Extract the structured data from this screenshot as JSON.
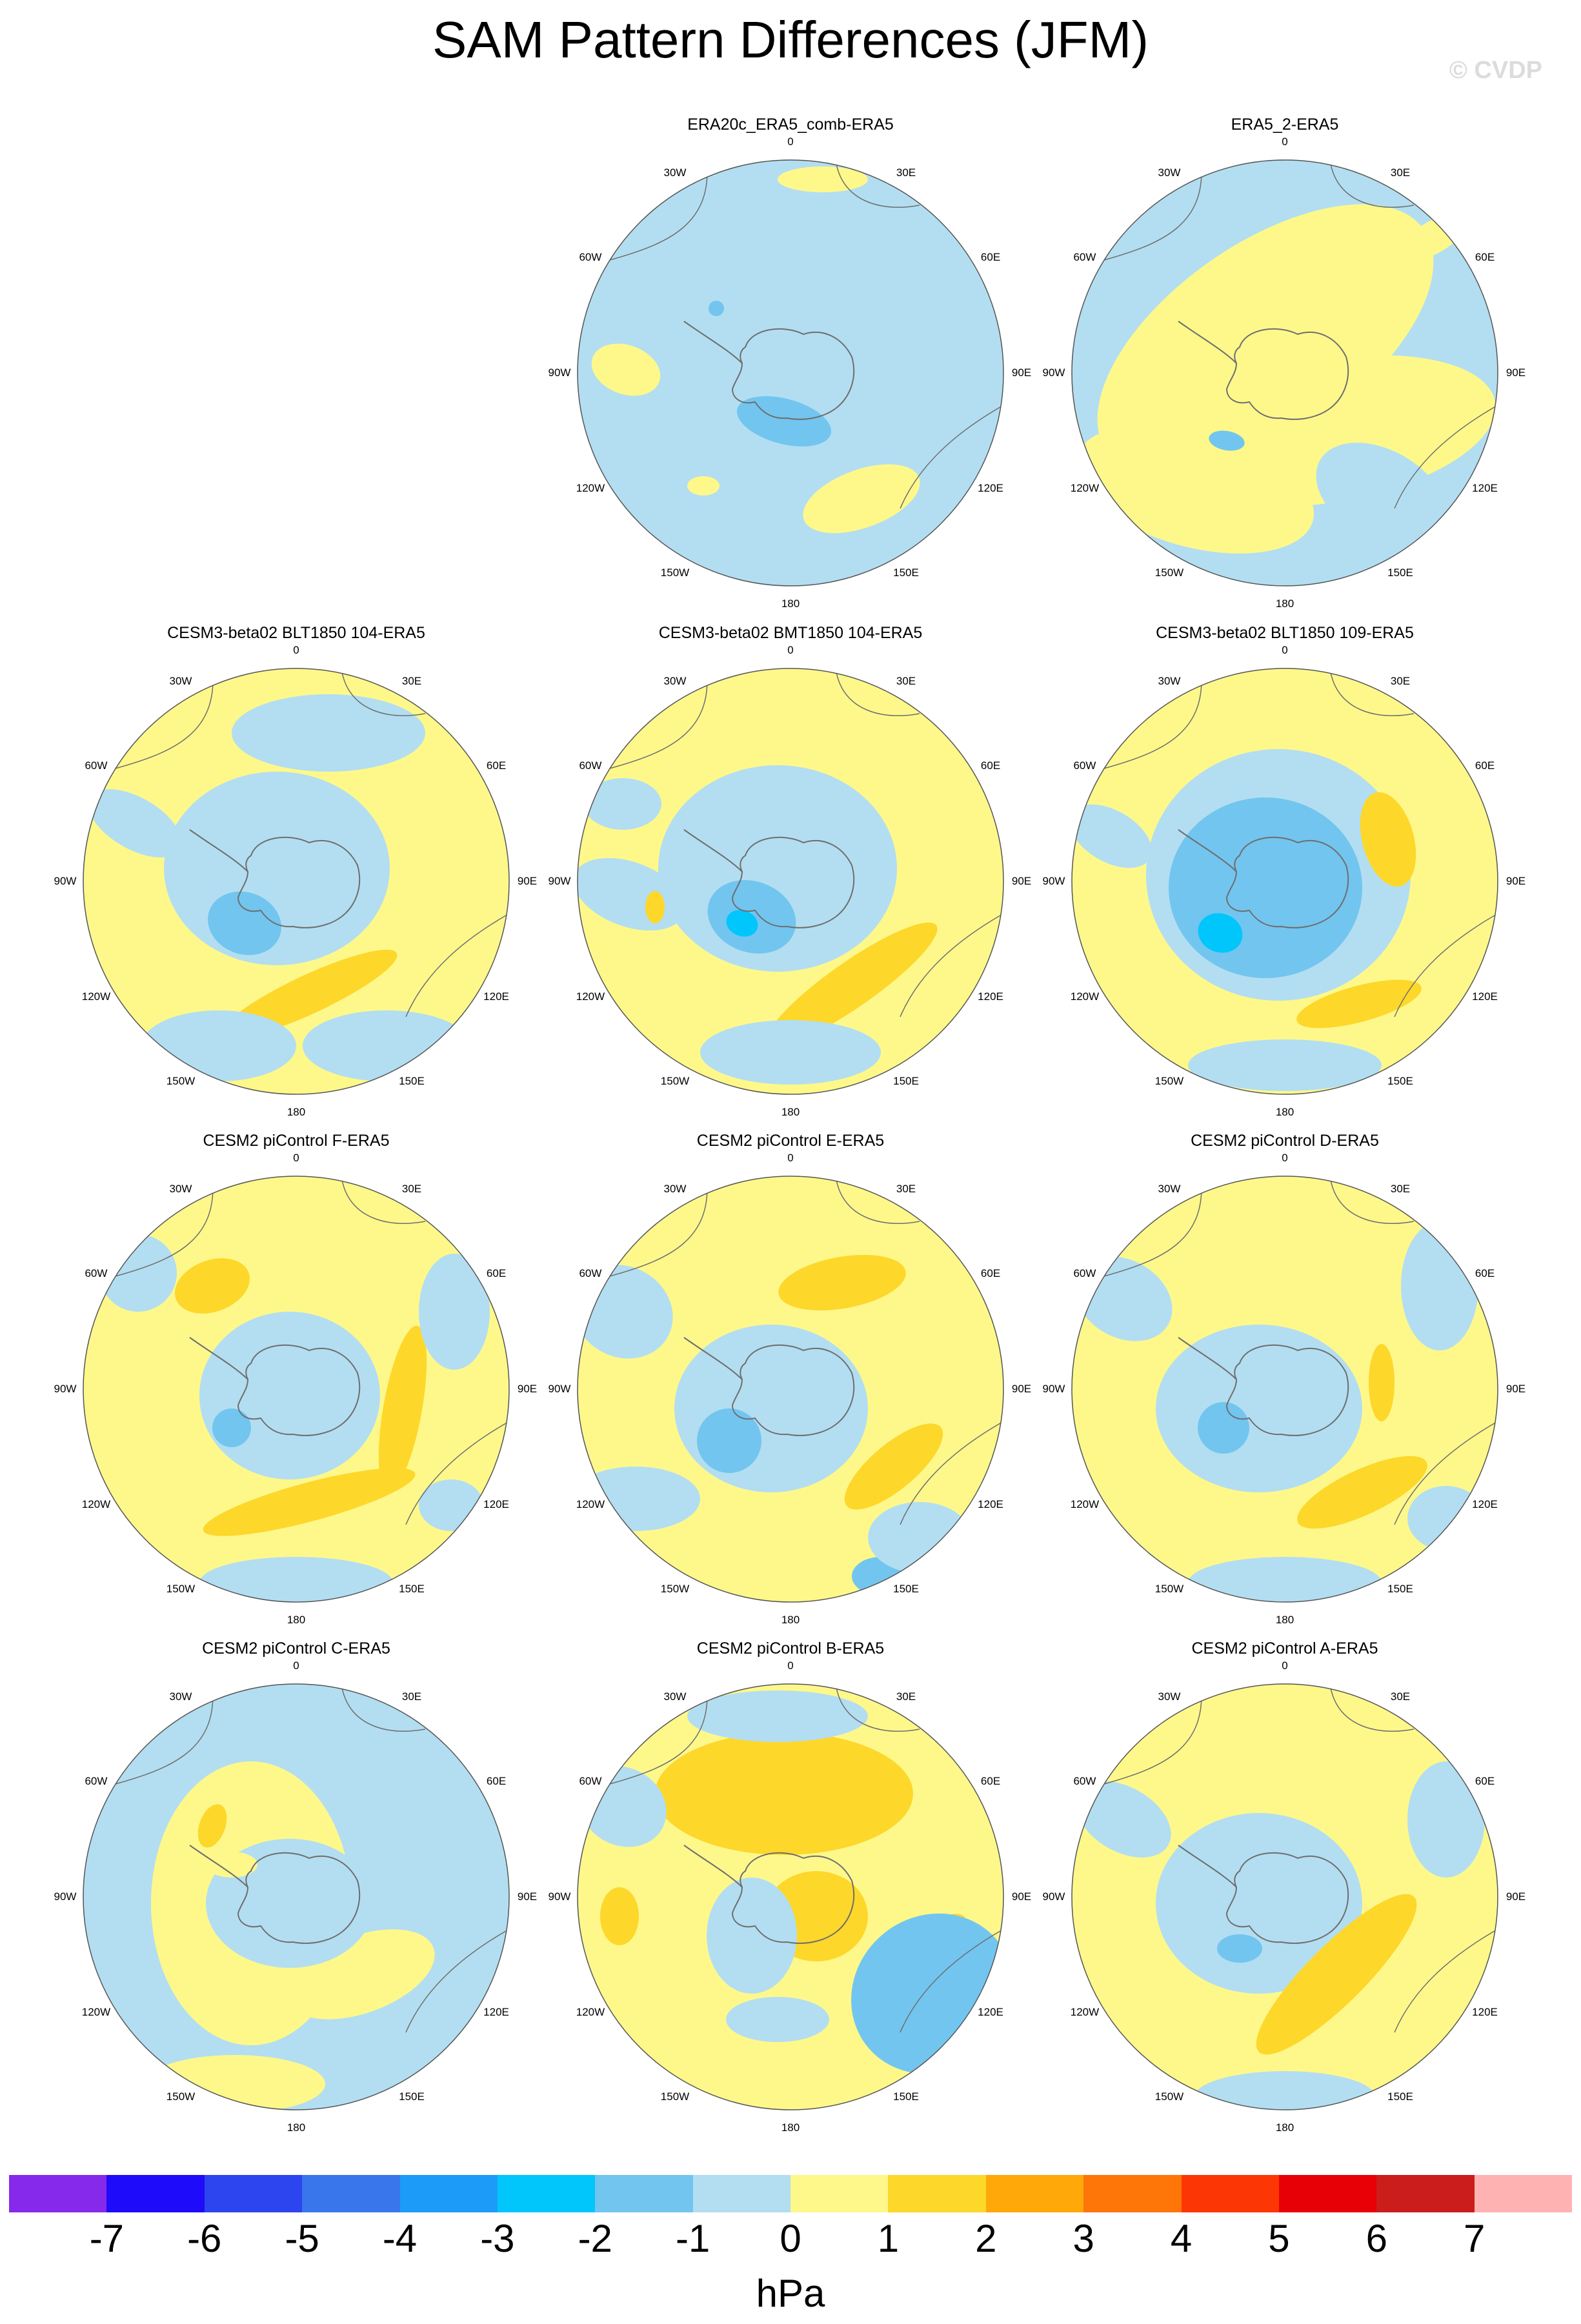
{
  "title": "SAM Pattern Differences (JFM)",
  "credit": "© CVDP",
  "units": "hPa",
  "lon_labels": [
    "0",
    "30E",
    "60E",
    "90E",
    "120E",
    "150E",
    "180",
    "150W",
    "120W",
    "90W",
    "60W",
    "30W"
  ],
  "colors": {
    "neg1": "#b3def1",
    "neg2": "#72c5ef",
    "neg3": "#00c6fb",
    "pos1": "#fef88b",
    "pos2": "#fdd72a",
    "coast": "#6e6e6e",
    "credit": "#dcdcdc"
  },
  "colorbar": {
    "colors": [
      "#8629ea",
      "#1e0bfa",
      "#2c45ef",
      "#3976ec",
      "#1c9bf9",
      "#00c6fb",
      "#72c5ef",
      "#b3def1",
      "#fef88b",
      "#fdd72a",
      "#fea80a",
      "#fe7508",
      "#fd3605",
      "#e70006",
      "#cb1d1b",
      "#feb3b2"
    ],
    "labels": [
      "-7",
      "-6",
      "-5",
      "-4",
      "-3",
      "-2",
      "-1",
      "0",
      "1",
      "2",
      "3",
      "4",
      "5",
      "6",
      "7"
    ]
  },
  "panels": [
    {
      "title": "ERA20c_ERA5_comb-ERA5",
      "background": "neg1"
    },
    {
      "title": "ERA5_2-ERA5",
      "background": "neg1"
    },
    {
      "title": "CESM3-beta02 BLT1850 104-ERA5",
      "background": "pos1"
    },
    {
      "title": "CESM3-beta02 BMT1850 104-ERA5",
      "background": "pos1"
    },
    {
      "title": "CESM3-beta02 BLT1850 109-ERA5",
      "background": "pos1"
    },
    {
      "title": "CESM2 piControl F-ERA5",
      "background": "pos1"
    },
    {
      "title": "CESM2 piControl E-ERA5",
      "background": "pos1"
    },
    {
      "title": "CESM2 piControl D-ERA5",
      "background": "pos1"
    },
    {
      "title": "CESM2 piControl C-ERA5",
      "background": "neg1"
    },
    {
      "title": "CESM2 piControl B-ERA5",
      "background": "pos1"
    },
    {
      "title": "CESM2 piControl A-ERA5",
      "background": "pos1"
    }
  ]
}
